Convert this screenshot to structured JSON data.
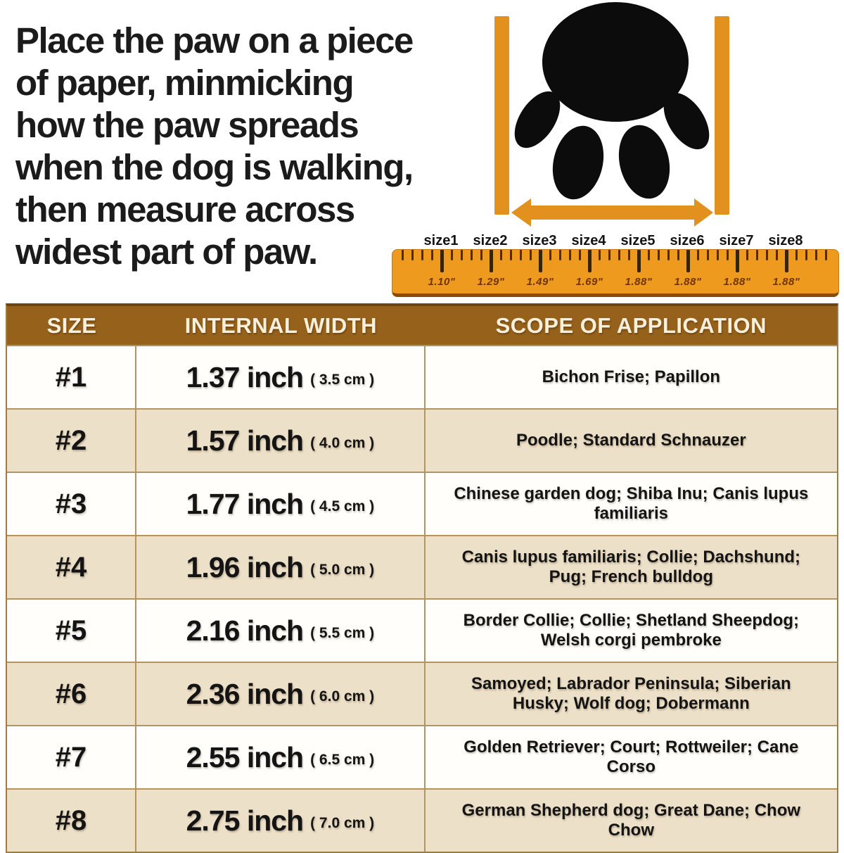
{
  "instructions": {
    "lines": [
      "Place the paw on a piece",
      "of paper, minmicking",
      "how the paw spreads",
      "when the dog is walking,",
      "then measure across",
      "widest part of paw."
    ]
  },
  "icons": {
    "paw_print": "black-paw-print-shape",
    "measure_arrow": "orange-double-headed-arrow",
    "bracket_bars": "orange-vertical-measure-bars",
    "ruler": "orange-ruler-with-ticks"
  },
  "ruler": {
    "sizes": [
      {
        "label": "size1",
        "width": "1.10\""
      },
      {
        "label": "size2",
        "width": "1.29\""
      },
      {
        "label": "size3",
        "width": "1.49\""
      },
      {
        "label": "size4",
        "width": "1.69\""
      },
      {
        "label": "size5",
        "width": "1.88\""
      },
      {
        "label": "size6",
        "width": "1.88\""
      },
      {
        "label": "size7",
        "width": "1.88\""
      },
      {
        "label": "size8",
        "width": "1.88\""
      }
    ]
  },
  "table": {
    "headers": [
      "SIZE",
      "INTERNAL WIDTH",
      "SCOPE OF APPLICATION"
    ],
    "rows": [
      {
        "size": "#1",
        "inch": "1.37 inch",
        "cm": "( 3.5 cm )",
        "scope": "Bichon Frise; Papillon"
      },
      {
        "size": "#2",
        "inch": "1.57 inch",
        "cm": "( 4.0 cm )",
        "scope": "Poodle; Standard Schnauzer"
      },
      {
        "size": "#3",
        "inch": "1.77 inch",
        "cm": "( 4.5 cm )",
        "scope": "Chinese garden dog; Shiba Inu; Canis lupus familiaris"
      },
      {
        "size": "#4",
        "inch": "1.96 inch",
        "cm": "( 5.0 cm )",
        "scope": "Canis lupus familiaris; Collie; Dachshund; Pug; French bulldog"
      },
      {
        "size": "#5",
        "inch": "2.16 inch",
        "cm": "( 5.5 cm )",
        "scope": "Border Collie; Collie; Shetland Sheepdog; Welsh corgi pembroke"
      },
      {
        "size": "#6",
        "inch": "2.36 inch",
        "cm": "( 6.0 cm )",
        "scope": "Samoyed; Labrador Peninsula; Siberian Husky; Wolf dog; Dobermann"
      },
      {
        "size": "#7",
        "inch": "2.55 inch",
        "cm": "( 6.5 cm )",
        "scope": "Golden Retriever; Court; Rottweiler; Cane Corso"
      },
      {
        "size": "#8",
        "inch": "2.75 inch",
        "cm": "( 7.0 cm )",
        "scope": "German Shepherd dog; Great Dane; Chow Chow"
      }
    ]
  },
  "colors": {
    "accent_orange": "#E2911E",
    "ruler_orange": "#EE9A1E",
    "header_brown": "#96621B",
    "row_beige": "#EDE0C8",
    "border_tan": "#B3945E",
    "text_black": "#141414",
    "header_text": "#F8F0DC"
  }
}
